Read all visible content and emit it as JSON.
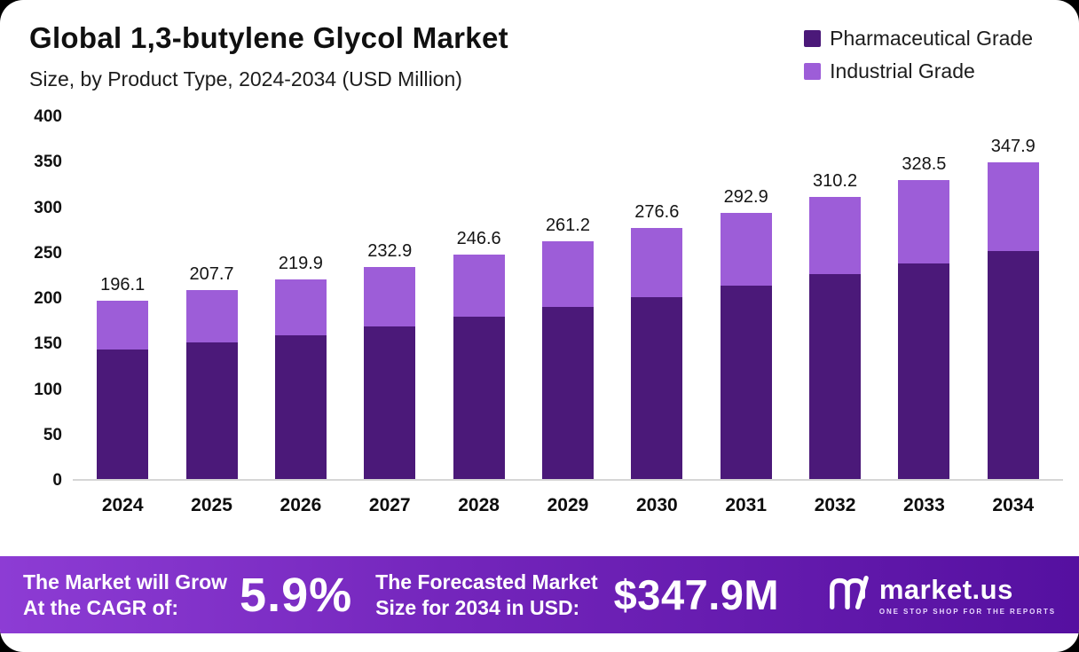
{
  "title": "Global 1,3-butylene Glycol Market",
  "subtitle": "Size, by Product Type, 2024-2034 (USD Million)",
  "legend": [
    {
      "label": "Pharmaceutical Grade",
      "color": "#4b1979"
    },
    {
      "label": "Industrial Grade",
      "color": "#9d5dd8"
    }
  ],
  "chart_data": {
    "type": "bar",
    "stacked": true,
    "title": "Global 1,3-butylene Glycol Market Size, by Product Type, 2024-2034 (USD Million)",
    "categories": [
      "2024",
      "2025",
      "2026",
      "2027",
      "2028",
      "2029",
      "2030",
      "2031",
      "2032",
      "2033",
      "2034"
    ],
    "series": [
      {
        "name": "Pharmaceutical Grade",
        "color": "#4b1979",
        "values": [
          142,
          150,
          158.5,
          168,
          178.5,
          189.5,
          200.5,
          213,
          225.5,
          237.5,
          251
        ]
      },
      {
        "name": "Industrial Grade",
        "color": "#9d5dd8",
        "values": [
          54.1,
          57.7,
          61.4,
          64.9,
          68.1,
          71.7,
          76.1,
          79.9,
          84.7,
          91,
          96.9
        ]
      }
    ],
    "totals": [
      196.1,
      207.7,
      219.9,
      232.9,
      246.6,
      261.2,
      276.6,
      292.9,
      310.2,
      328.5,
      347.9
    ],
    "total_labels": [
      "196.1",
      "207.7",
      "219.9",
      "232.9",
      "246.6",
      "261.2",
      "276.6",
      "292.9",
      "310.2",
      "328.5",
      "347.9"
    ],
    "xlabel": "",
    "ylabel": "",
    "ylim": [
      0,
      400
    ],
    "yticks": [
      "400",
      "350",
      "300",
      "250",
      "200",
      "150",
      "100",
      "50",
      "0"
    ],
    "grid": false,
    "legend_position": "top-right"
  },
  "banner": {
    "left_line1": "The Market will Grow",
    "left_line2": "At the CAGR of:",
    "cagr": "5.9%",
    "mid_line1": "The Forecasted Market",
    "mid_line2": "Size for 2034 in USD:",
    "forecast": "$347.9M",
    "logo_name": "market.us",
    "logo_tagline": "ONE STOP SHOP FOR THE REPORTS"
  }
}
